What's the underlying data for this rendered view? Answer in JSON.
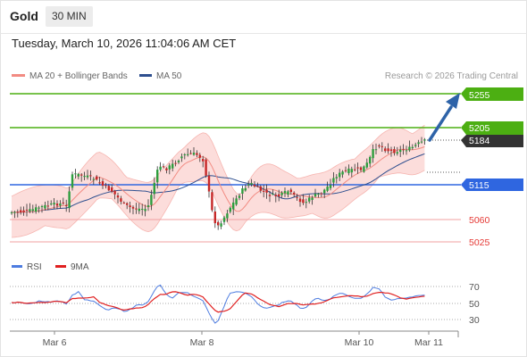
{
  "header": {
    "instrument": "Gold",
    "timeframe": "30 MIN"
  },
  "datetime": "Tuesday, March 10, 2026 11:04:06 AM CET",
  "legend": {
    "ma20": {
      "label": "MA 20 + Bollinger Bands",
      "color": "#f28b82"
    },
    "ma50": {
      "label": "MA 50",
      "color": "#2e4f8f"
    }
  },
  "copyright": "Research © 2026 Trading Central",
  "levels": [
    {
      "value": "5255",
      "kind": "resistance",
      "color": "#4caf12"
    },
    {
      "value": "5205",
      "kind": "resistance",
      "color": "#4caf12"
    },
    {
      "value": "5184",
      "kind": "last-price",
      "color": "#333333"
    },
    {
      "value": "5115",
      "kind": "pivot",
      "color": "#2f66e0"
    },
    {
      "value": "5060",
      "kind": "support",
      "color": "#e53935"
    },
    {
      "value": "5025",
      "kind": "support",
      "color": "#e53935"
    }
  ],
  "rsi_panel": {
    "legend": [
      {
        "label": "RSI",
        "color": "#4d7ce0"
      },
      {
        "label": "9MA",
        "color": "#e02020"
      }
    ],
    "ticks": [
      "70",
      "50",
      "30"
    ]
  },
  "xaxis": {
    "labels": [
      "Mar 6",
      "Mar 8",
      "Mar 10",
      "Mar 11"
    ]
  },
  "colors": {
    "up_candle": "#2e9e3e",
    "down_candle": "#c62828",
    "band_fill": "#fbd7d5",
    "arrow": "#2e63a8"
  }
}
